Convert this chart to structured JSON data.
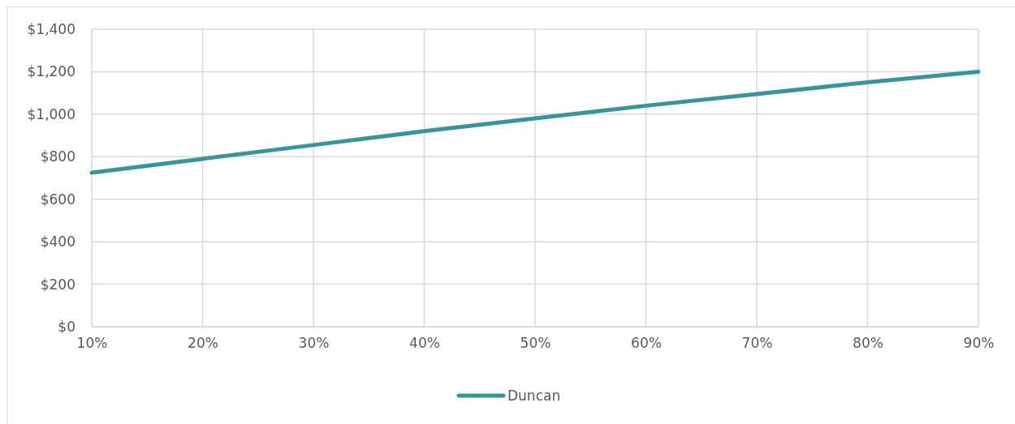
{
  "chart_data": {
    "type": "line",
    "x": [
      10,
      20,
      30,
      40,
      50,
      60,
      70,
      80,
      90
    ],
    "xlim": [
      10,
      90
    ],
    "xticks": [
      {
        "value": 10,
        "label": "10%"
      },
      {
        "value": 20,
        "label": "20%"
      },
      {
        "value": 30,
        "label": "30%"
      },
      {
        "value": 40,
        "label": "40%"
      },
      {
        "value": 50,
        "label": "50%"
      },
      {
        "value": 60,
        "label": "60%"
      },
      {
        "value": 70,
        "label": "70%"
      },
      {
        "value": 80,
        "label": "80%"
      },
      {
        "value": 90,
        "label": "90%"
      }
    ],
    "ylim": [
      0,
      1400
    ],
    "yticks": [
      {
        "value": 0,
        "label": "$0"
      },
      {
        "value": 200,
        "label": "$200"
      },
      {
        "value": 400,
        "label": "$400"
      },
      {
        "value": 600,
        "label": "$600"
      },
      {
        "value": 800,
        "label": "$800"
      },
      {
        "value": 1000,
        "label": "$1,000"
      },
      {
        "value": 1200,
        "label": "$1,200"
      },
      {
        "value": 1400,
        "label": "$1,400"
      }
    ],
    "series": [
      {
        "name": "Duncan",
        "color": "#3a9599",
        "values": [
          725,
          790,
          855,
          920,
          980,
          1040,
          1095,
          1150,
          1200
        ]
      }
    ],
    "grid": true,
    "legend": "bottom",
    "marker": "none",
    "line_style": "solid"
  }
}
